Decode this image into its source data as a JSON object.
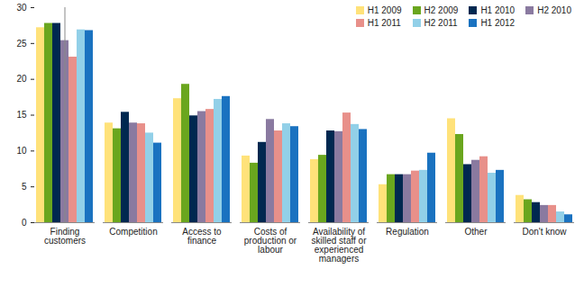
{
  "chart_data": {
    "type": "bar",
    "categories": [
      "Finding customers",
      "Competition",
      "Access to finance",
      "Costs of production or labour",
      "Availability of skilled staff or experienced managers",
      "Regulation",
      "Other",
      "Don't know"
    ],
    "series": [
      {
        "name": "H1 2009",
        "color": "#ffe27a",
        "values": [
          27.2,
          13.9,
          17.3,
          9.3,
          8.8,
          5.3,
          14.5,
          3.8
        ]
      },
      {
        "name": "H2 2009",
        "color": "#6aa61e",
        "values": [
          27.8,
          13.1,
          19.3,
          8.3,
          9.4,
          6.7,
          12.3,
          3.2
        ]
      },
      {
        "name": "H1 2010",
        "color": "#002850",
        "values": [
          27.8,
          15.4,
          14.9,
          11.2,
          12.8,
          6.7,
          8.1,
          2.8
        ]
      },
      {
        "name": "H2 2010",
        "color": "#8a7aa0",
        "values": [
          25.4,
          13.9,
          15.5,
          14.4,
          12.7,
          6.7,
          8.7,
          2.4
        ]
      },
      {
        "name": "H1 2011",
        "color": "#e8908a",
        "values": [
          23.1,
          13.8,
          15.8,
          12.8,
          15.3,
          7.2,
          9.2,
          2.4
        ]
      },
      {
        "name": "H2 2011",
        "color": "#92d0e8",
        "values": [
          26.9,
          12.5,
          17.2,
          13.8,
          13.7,
          7.3,
          6.9,
          1.5
        ]
      },
      {
        "name": "H1 2012",
        "color": "#1a72c0",
        "values": [
          26.8,
          11.1,
          17.6,
          13.4,
          13.0,
          9.7,
          7.3,
          1.1
        ]
      }
    ],
    "ylim": [
      0,
      30
    ],
    "yticks": [
      0,
      5,
      10,
      15,
      20,
      25,
      30
    ],
    "grid": false,
    "legend": "top-right"
  }
}
